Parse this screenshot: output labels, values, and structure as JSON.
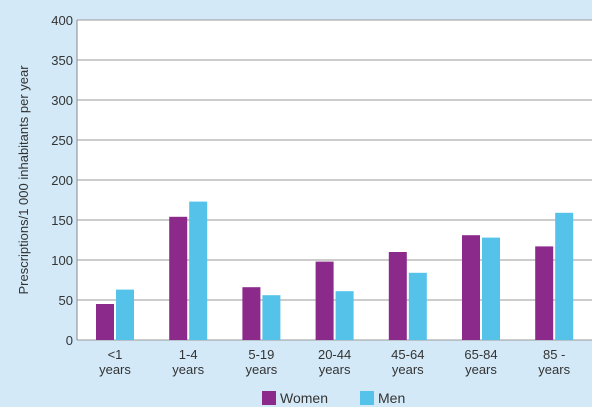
{
  "chart_data": {
    "type": "bar",
    "title": "",
    "xlabel": "",
    "ylabel": "Prescriptions/1 000 inhabitants per year",
    "ylim": [
      0,
      400
    ],
    "yticks": [
      0,
      50,
      100,
      150,
      200,
      250,
      300,
      350,
      400
    ],
    "grid": true,
    "legend_position": "bottom",
    "categories": [
      [
        "<1",
        "years"
      ],
      [
        "1-4",
        "years"
      ],
      [
        "5-19",
        "years"
      ],
      [
        "20-44",
        "years"
      ],
      [
        "45-64",
        "years"
      ],
      [
        "65-84",
        "years"
      ],
      [
        "85 -",
        "years"
      ]
    ],
    "series": [
      {
        "name": "Women",
        "color": "#8b2a8b",
        "values": [
          45,
          154,
          66,
          98,
          110,
          131,
          117
        ]
      },
      {
        "name": "Men",
        "color": "#55c2ea",
        "values": [
          63,
          173,
          56,
          61,
          84,
          128,
          159
        ]
      }
    ]
  }
}
